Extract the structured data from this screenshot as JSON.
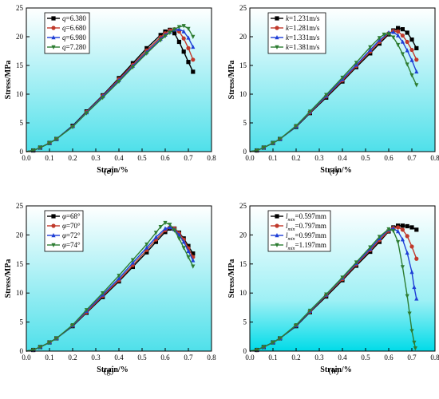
{
  "chart_data": [
    {
      "id": "e",
      "type": "line",
      "panel_label": "(e)",
      "xlabel": "Strain/%",
      "ylabel": "Stress/MPa",
      "xlim": [
        0,
        0.8
      ],
      "ylim": [
        0,
        25
      ],
      "xticks": [
        "0.0",
        "0.1",
        "0.2",
        "0.3",
        "0.4",
        "0.5",
        "0.6",
        "0.7",
        "0.8"
      ],
      "yticks": [
        "0",
        "5",
        "10",
        "15",
        "20",
        "25"
      ],
      "legend_position": "top-left",
      "series": [
        {
          "name": "q=6.380",
          "color": "#000000",
          "marker": "square",
          "x": [
            0,
            0.03,
            0.06,
            0.1,
            0.13,
            0.2,
            0.26,
            0.33,
            0.4,
            0.46,
            0.52,
            0.58,
            0.6,
            0.62,
            0.64,
            0.66,
            0.68,
            0.7,
            0.72
          ],
          "y": [
            0,
            0.2,
            0.7,
            1.5,
            2.2,
            4.5,
            7,
            9.8,
            12.8,
            15.4,
            18,
            20.3,
            20.9,
            21.2,
            20.6,
            19.1,
            17.4,
            15.6,
            13.9
          ]
        },
        {
          "name": "q=6.680",
          "color": "#c0392b",
          "marker": "circle",
          "x": [
            0,
            0.03,
            0.06,
            0.1,
            0.13,
            0.2,
            0.26,
            0.33,
            0.4,
            0.46,
            0.52,
            0.58,
            0.6,
            0.62,
            0.64,
            0.66,
            0.68,
            0.7,
            0.72
          ],
          "y": [
            0,
            0.2,
            0.7,
            1.5,
            2.2,
            4.4,
            6.9,
            9.7,
            12.6,
            15.1,
            17.6,
            19.9,
            20.6,
            21.1,
            21.3,
            20.9,
            19.7,
            18.0,
            16.0
          ]
        },
        {
          "name": "q=6.980",
          "color": "#1f3fd6",
          "marker": "triangle-up",
          "x": [
            0,
            0.03,
            0.06,
            0.1,
            0.13,
            0.2,
            0.26,
            0.33,
            0.4,
            0.46,
            0.52,
            0.58,
            0.6,
            0.62,
            0.64,
            0.66,
            0.68,
            0.7,
            0.72
          ],
          "y": [
            0,
            0.2,
            0.7,
            1.5,
            2.2,
            4.4,
            6.8,
            9.6,
            12.4,
            14.9,
            17.3,
            19.6,
            20.3,
            20.8,
            21.2,
            21.3,
            20.9,
            19.8,
            18.2
          ]
        },
        {
          "name": "q=7.280",
          "color": "#2e7d32",
          "marker": "triangle-down",
          "x": [
            0,
            0.03,
            0.06,
            0.1,
            0.13,
            0.2,
            0.26,
            0.33,
            0.4,
            0.46,
            0.52,
            0.58,
            0.6,
            0.62,
            0.64,
            0.66,
            0.68,
            0.7,
            0.72
          ],
          "y": [
            0,
            0.2,
            0.7,
            1.5,
            2.2,
            4.3,
            6.7,
            9.4,
            12.2,
            14.7,
            17.1,
            19.4,
            20.1,
            20.7,
            21.3,
            21.7,
            21.9,
            21.4,
            20.0
          ]
        }
      ]
    },
    {
      "id": "f",
      "type": "line",
      "panel_label": "(f)",
      "xlabel": "Strain/%",
      "ylabel": "Stress/MPa",
      "xlim": [
        0,
        0.8
      ],
      "ylim": [
        0,
        25
      ],
      "xticks": [
        "0.0",
        "0.1",
        "0.2",
        "0.3",
        "0.4",
        "0.5",
        "0.6",
        "0.7",
        "0.8"
      ],
      "yticks": [
        "0",
        "5",
        "10",
        "15",
        "20",
        "25"
      ],
      "legend_position": "top-left",
      "series": [
        {
          "name": "k=1.231m/s",
          "color": "#000000",
          "marker": "square",
          "x": [
            0,
            0.03,
            0.06,
            0.1,
            0.13,
            0.2,
            0.26,
            0.33,
            0.4,
            0.46,
            0.52,
            0.56,
            0.6,
            0.62,
            0.64,
            0.66,
            0.68,
            0.7,
            0.72
          ],
          "y": [
            0,
            0.2,
            0.7,
            1.5,
            2.2,
            4.3,
            6.7,
            9.4,
            12.2,
            14.7,
            17.1,
            18.8,
            20.4,
            21.1,
            21.5,
            21.3,
            20.7,
            19.5,
            18.0
          ]
        },
        {
          "name": "k=1.281m/s",
          "color": "#c0392b",
          "marker": "circle",
          "x": [
            0,
            0.03,
            0.06,
            0.1,
            0.13,
            0.2,
            0.26,
            0.33,
            0.4,
            0.46,
            0.52,
            0.56,
            0.6,
            0.62,
            0.64,
            0.66,
            0.68,
            0.7,
            0.72
          ],
          "y": [
            0,
            0.2,
            0.7,
            1.5,
            2.2,
            4.4,
            6.8,
            9.6,
            12.4,
            14.9,
            17.4,
            19.1,
            20.6,
            21.0,
            20.9,
            20.2,
            19.1,
            17.7,
            16.0
          ]
        },
        {
          "name": "k=1.331m/s",
          "color": "#1f3fd6",
          "marker": "triangle-up",
          "x": [
            0,
            0.03,
            0.06,
            0.1,
            0.13,
            0.2,
            0.26,
            0.33,
            0.4,
            0.46,
            0.52,
            0.56,
            0.6,
            0.62,
            0.64,
            0.66,
            0.68,
            0.7,
            0.72
          ],
          "y": [
            0,
            0.2,
            0.7,
            1.5,
            2.2,
            4.4,
            6.9,
            9.7,
            12.6,
            15.1,
            17.7,
            19.4,
            20.7,
            20.8,
            20.2,
            19.1,
            17.6,
            15.9,
            13.9
          ]
        },
        {
          "name": "k=1.381m/s",
          "color": "#2e7d32",
          "marker": "triangle-down",
          "x": [
            0,
            0.03,
            0.06,
            0.1,
            0.13,
            0.2,
            0.26,
            0.33,
            0.4,
            0.46,
            0.52,
            0.56,
            0.58,
            0.6,
            0.62,
            0.64,
            0.66,
            0.68,
            0.7,
            0.72
          ],
          "y": [
            0,
            0.2,
            0.7,
            1.5,
            2.2,
            4.5,
            7.0,
            9.9,
            12.9,
            15.5,
            18.2,
            19.8,
            20.4,
            20.5,
            19.9,
            18.6,
            17.0,
            15.2,
            13.3,
            11.6
          ]
        }
      ]
    },
    {
      "id": "g",
      "type": "line",
      "panel_label": "(g)",
      "xlabel": "Strain/%",
      "ylabel": "Stress/MPa",
      "xlim": [
        0,
        0.8
      ],
      "ylim": [
        0,
        25
      ],
      "xticks": [
        "0.0",
        "0.1",
        "0.2",
        "0.3",
        "0.4",
        "0.5",
        "0.6",
        "0.7",
        "0.8"
      ],
      "yticks": [
        "0",
        "5",
        "10",
        "15",
        "20",
        "25"
      ],
      "legend_position": "top-left",
      "series": [
        {
          "name": "φ=68°",
          "color": "#000000",
          "marker": "square",
          "x": [
            0,
            0.03,
            0.06,
            0.1,
            0.13,
            0.2,
            0.26,
            0.33,
            0.4,
            0.46,
            0.52,
            0.56,
            0.6,
            0.62,
            0.64,
            0.66,
            0.68,
            0.7,
            0.72
          ],
          "y": [
            0,
            0.2,
            0.7,
            1.5,
            2.2,
            4.3,
            6.6,
            9.3,
            12.0,
            14.5,
            17.0,
            18.8,
            20.5,
            21.1,
            21.1,
            20.4,
            19.4,
            18.1,
            16.8
          ]
        },
        {
          "name": "φ=70°",
          "color": "#c0392b",
          "marker": "circle",
          "x": [
            0,
            0.03,
            0.06,
            0.1,
            0.13,
            0.2,
            0.26,
            0.33,
            0.4,
            0.46,
            0.52,
            0.56,
            0.6,
            0.62,
            0.64,
            0.66,
            0.68,
            0.7,
            0.72
          ],
          "y": [
            0,
            0.2,
            0.7,
            1.5,
            2.2,
            4.4,
            6.7,
            9.5,
            12.2,
            14.8,
            17.4,
            19.2,
            20.8,
            21.3,
            21.1,
            20.3,
            19.2,
            17.7,
            16.2
          ]
        },
        {
          "name": "φ=72°",
          "color": "#1f3fd6",
          "marker": "triangle-up",
          "x": [
            0,
            0.03,
            0.06,
            0.1,
            0.13,
            0.2,
            0.26,
            0.33,
            0.4,
            0.46,
            0.52,
            0.56,
            0.6,
            0.62,
            0.64,
            0.66,
            0.68,
            0.7,
            0.72
          ],
          "y": [
            0,
            0.2,
            0.7,
            1.5,
            2.2,
            4.4,
            6.9,
            9.7,
            12.5,
            15.2,
            17.8,
            19.6,
            21.1,
            21.3,
            20.9,
            20.0,
            18.8,
            17.2,
            15.6
          ]
        },
        {
          "name": "φ=74°",
          "color": "#2e7d32",
          "marker": "triangle-down",
          "x": [
            0,
            0.03,
            0.06,
            0.1,
            0.13,
            0.2,
            0.26,
            0.33,
            0.4,
            0.46,
            0.52,
            0.56,
            0.58,
            0.6,
            0.62,
            0.64,
            0.66,
            0.68,
            0.7,
            0.72
          ],
          "y": [
            0,
            0.2,
            0.7,
            1.5,
            2.2,
            4.5,
            7.1,
            10.0,
            13.0,
            15.7,
            18.4,
            20.4,
            21.4,
            22.1,
            21.8,
            20.8,
            19.4,
            17.8,
            16.2,
            14.6
          ]
        }
      ]
    },
    {
      "id": "h",
      "type": "line",
      "panel_label": "(h)",
      "xlabel": "Strain/%",
      "ylabel": "Stress/MPa",
      "xlim": [
        0,
        0.8
      ],
      "ylim": [
        0,
        25
      ],
      "xticks": [
        "0.0",
        "0.1",
        "0.2",
        "0.3",
        "0.4",
        "0.5",
        "0.6",
        "0.7",
        "0.8"
      ],
      "yticks": [
        "0",
        "5",
        "10",
        "15",
        "20",
        "25"
      ],
      "legend_position": "top-left",
      "series": [
        {
          "name": "l_min=0.597mm",
          "color": "#000000",
          "marker": "square",
          "x": [
            0,
            0.03,
            0.06,
            0.1,
            0.13,
            0.2,
            0.26,
            0.33,
            0.4,
            0.46,
            0.52,
            0.56,
            0.6,
            0.62,
            0.64,
            0.66,
            0.68,
            0.7,
            0.72
          ],
          "y": [
            0,
            0.2,
            0.7,
            1.5,
            2.2,
            4.3,
            6.7,
            9.4,
            12.2,
            14.7,
            17.1,
            18.8,
            20.6,
            21.3,
            21.6,
            21.6,
            21.5,
            21.3,
            20.9
          ]
        },
        {
          "name": "l_min=0.797mm",
          "color": "#c0392b",
          "marker": "circle",
          "x": [
            0,
            0.03,
            0.06,
            0.1,
            0.13,
            0.2,
            0.26,
            0.33,
            0.4,
            0.46,
            0.52,
            0.56,
            0.6,
            0.62,
            0.64,
            0.66,
            0.68,
            0.7,
            0.72
          ],
          "y": [
            0,
            0.2,
            0.7,
            1.5,
            2.2,
            4.4,
            6.8,
            9.6,
            12.4,
            14.9,
            17.4,
            19.1,
            20.7,
            21.2,
            21.3,
            20.9,
            19.8,
            18.0,
            15.9
          ]
        },
        {
          "name": "l_min=0.997mm",
          "color": "#1f3fd6",
          "marker": "triangle-up",
          "x": [
            0,
            0.03,
            0.06,
            0.1,
            0.13,
            0.2,
            0.26,
            0.33,
            0.4,
            0.46,
            0.52,
            0.56,
            0.6,
            0.62,
            0.64,
            0.66,
            0.68,
            0.7,
            0.71,
            0.72
          ],
          "y": [
            0,
            0.2,
            0.7,
            1.5,
            2.2,
            4.4,
            6.9,
            9.7,
            12.6,
            15.1,
            17.6,
            19.4,
            20.9,
            21.1,
            20.6,
            19.2,
            16.9,
            13.6,
            11.0,
            9.0
          ]
        },
        {
          "name": "l_min=1.197mm",
          "color": "#2e7d32",
          "marker": "triangle-down",
          "x": [
            0,
            0.03,
            0.06,
            0.1,
            0.13,
            0.2,
            0.26,
            0.33,
            0.4,
            0.46,
            0.52,
            0.56,
            0.6,
            0.62,
            0.64,
            0.66,
            0.68,
            0.69,
            0.7,
            0.71,
            0.715
          ],
          "y": [
            0,
            0.2,
            0.7,
            1.5,
            2.2,
            4.5,
            7.0,
            9.8,
            12.7,
            15.3,
            17.9,
            19.7,
            21.0,
            20.7,
            18.8,
            14.5,
            9.5,
            6.5,
            3.5,
            1.5,
            0.5
          ]
        }
      ]
    }
  ]
}
